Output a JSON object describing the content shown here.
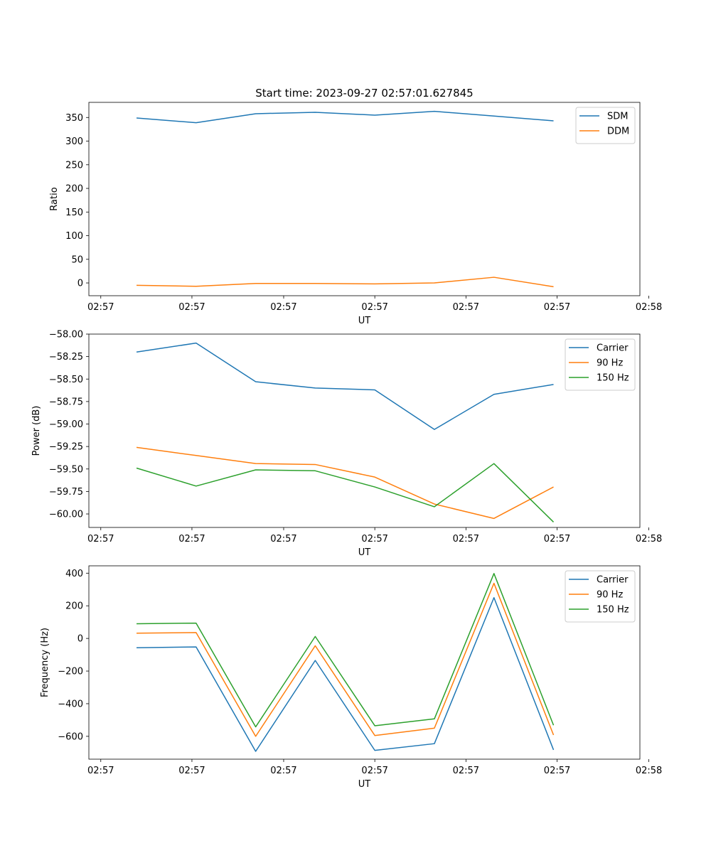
{
  "title": "Start time: 2023-09-27 02:57:01.627845",
  "chart_data": [
    {
      "type": "line",
      "xlabel": "UT",
      "ylabel": "Ratio",
      "x": [
        1,
        2,
        3,
        4,
        5,
        6,
        7,
        8
      ],
      "xlim": [
        0.2,
        9.45
      ],
      "xticks": [
        0.4,
        1.93,
        3.47,
        5.0,
        6.53,
        8.06,
        9.6
      ],
      "xtick_labels": [
        "02:57",
        "02:57",
        "02:57",
        "02:57",
        "02:57",
        "02:57",
        "02:58"
      ],
      "ylim": [
        -27,
        382
      ],
      "yticks": [
        0,
        50,
        100,
        150,
        200,
        250,
        300,
        350
      ],
      "ytick_labels": [
        "0",
        "50",
        "100",
        "150",
        "200",
        "250",
        "300",
        "350"
      ],
      "legend_position": "top-right",
      "series": [
        {
          "name": "SDM",
          "color": "#1f77b4",
          "values": [
            349,
            339,
            358,
            361,
            355,
            363,
            353,
            343
          ]
        },
        {
          "name": "DDM",
          "color": "#ff7f0e",
          "values": [
            -5,
            -7,
            -1,
            -1,
            -2,
            0,
            12,
            -8
          ]
        }
      ]
    },
    {
      "type": "line",
      "xlabel": "UT",
      "ylabel": "Power (dB)",
      "x": [
        1,
        2,
        3,
        4,
        5,
        6,
        7,
        8
      ],
      "xlim": [
        0.2,
        9.45
      ],
      "xticks": [
        0.4,
        1.93,
        3.47,
        5.0,
        6.53,
        8.06,
        9.6
      ],
      "xtick_labels": [
        "02:57",
        "02:57",
        "02:57",
        "02:57",
        "02:57",
        "02:57",
        "02:58"
      ],
      "ylim": [
        -60.15,
        -58.0
      ],
      "yticks": [
        -58.0,
        -58.25,
        -58.5,
        -58.75,
        -59.0,
        -59.25,
        -59.5,
        -59.75,
        -60.0
      ],
      "ytick_labels": [
        "−58.00",
        "−58.25",
        "−58.50",
        "−58.75",
        "−59.00",
        "−59.25",
        "−59.50",
        "−59.75",
        "−60.00"
      ],
      "legend_position": "top-right",
      "series": [
        {
          "name": "Carrier",
          "color": "#1f77b4",
          "values": [
            -58.2,
            -58.1,
            -58.53,
            -58.6,
            -58.62,
            -59.06,
            -58.67,
            -58.56
          ]
        },
        {
          "name": "90 Hz",
          "color": "#ff7f0e",
          "values": [
            -59.26,
            -59.35,
            -59.44,
            -59.45,
            -59.59,
            -59.89,
            -60.05,
            -59.7
          ]
        },
        {
          "name": "150 Hz",
          "color": "#2ca02c",
          "values": [
            -59.49,
            -59.69,
            -59.51,
            -59.52,
            -59.7,
            -59.92,
            -59.44,
            -60.09
          ]
        }
      ]
    },
    {
      "type": "line",
      "xlabel": "UT",
      "ylabel": "Frequency (Hz)",
      "x": [
        1,
        2,
        3,
        4,
        5,
        6,
        7,
        8
      ],
      "xlim": [
        0.2,
        9.45
      ],
      "xticks": [
        0.4,
        1.93,
        3.47,
        5.0,
        6.53,
        8.06,
        9.6
      ],
      "xtick_labels": [
        "02:57",
        "02:57",
        "02:57",
        "02:57",
        "02:57",
        "02:57",
        "02:58"
      ],
      "ylim": [
        -740,
        445
      ],
      "yticks": [
        -600,
        -400,
        -200,
        0,
        200,
        400
      ],
      "ytick_labels": [
        "−600",
        "−400",
        "−200",
        "0",
        "200",
        "400"
      ],
      "legend_position": "top-right",
      "series": [
        {
          "name": "Carrier",
          "color": "#1f77b4",
          "values": [
            -57,
            -52,
            -692,
            -135,
            -686,
            -645,
            250,
            -683
          ]
        },
        {
          "name": "90 Hz",
          "color": "#ff7f0e",
          "values": [
            32,
            36,
            -600,
            -45,
            -595,
            -550,
            338,
            -592
          ]
        },
        {
          "name": "150 Hz",
          "color": "#2ca02c",
          "values": [
            90,
            94,
            -542,
            12,
            -535,
            -493,
            398,
            -532
          ]
        }
      ]
    }
  ]
}
